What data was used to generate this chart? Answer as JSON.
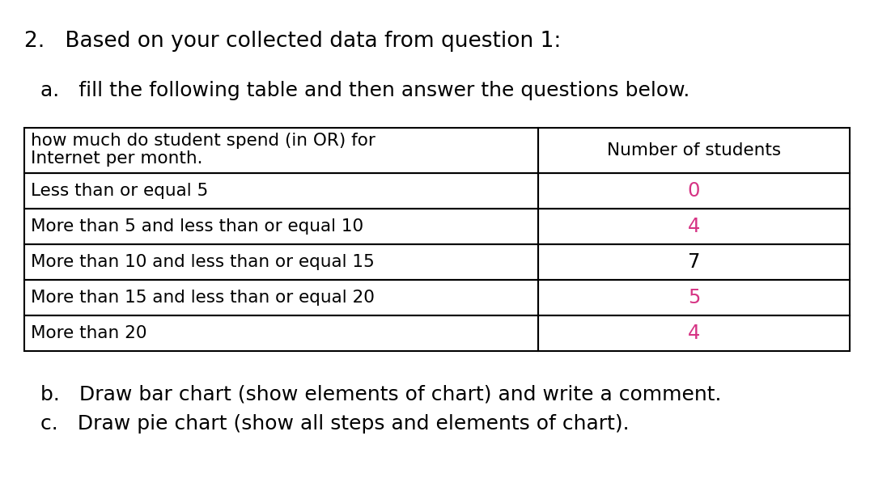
{
  "title_line": "2.   Based on your collected data from question 1:",
  "subtitle": "a.   fill the following table and then answer the questions below.",
  "col1_header_line1": "how much do student spend (in OR) for",
  "col1_header_line2": "Internet per month.",
  "col2_header": "Number of students",
  "rows": [
    {
      "label": "Less than or equal 5",
      "value": "0",
      "color": "#d63384"
    },
    {
      "label": "More than 5 and less than or equal 10",
      "value": "4",
      "color": "#d63384"
    },
    {
      "label": "More than 10 and less than or equal 15",
      "value": "7",
      "color": "#000000"
    },
    {
      "label": "More than 15 and less than or equal 20",
      "value": "5",
      "color": "#d63384"
    },
    {
      "label": "More than 20",
      "value": "4",
      "color": "#d63384"
    }
  ],
  "footer_b": "b.   Draw bar chart (show elements of chart) and write a comment.",
  "footer_c": "c.   Draw pie chart (show all steps and elements of chart).",
  "bg_color": "#ffffff",
  "text_color": "#000000",
  "font_size_title": 19,
  "font_size_subtitle": 18,
  "font_size_table": 15.5,
  "font_size_footer": 18
}
